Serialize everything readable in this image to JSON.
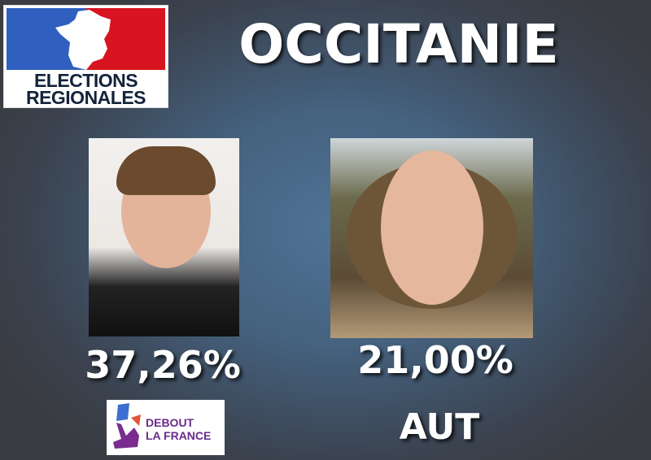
{
  "header": {
    "logo_text": "ELECTIONS REGIONALES",
    "logo_line1": "ELECTIONS",
    "logo_line2": "REGIONALES",
    "title": "OCCITANIE"
  },
  "candidates": [
    {
      "percentage": "37,26%",
      "party_logo_text": "DEBOUT LA FRANCE",
      "party_line1": "DEBOUT",
      "party_line2": "LA FRANCE"
    },
    {
      "percentage": "21,00%",
      "party": "AUT"
    }
  ],
  "colors": {
    "flag_blue": "#2f5fbf",
    "flag_red": "#d7141f",
    "dlf_purple": "#6a2a8a",
    "text": "#ffffff"
  }
}
